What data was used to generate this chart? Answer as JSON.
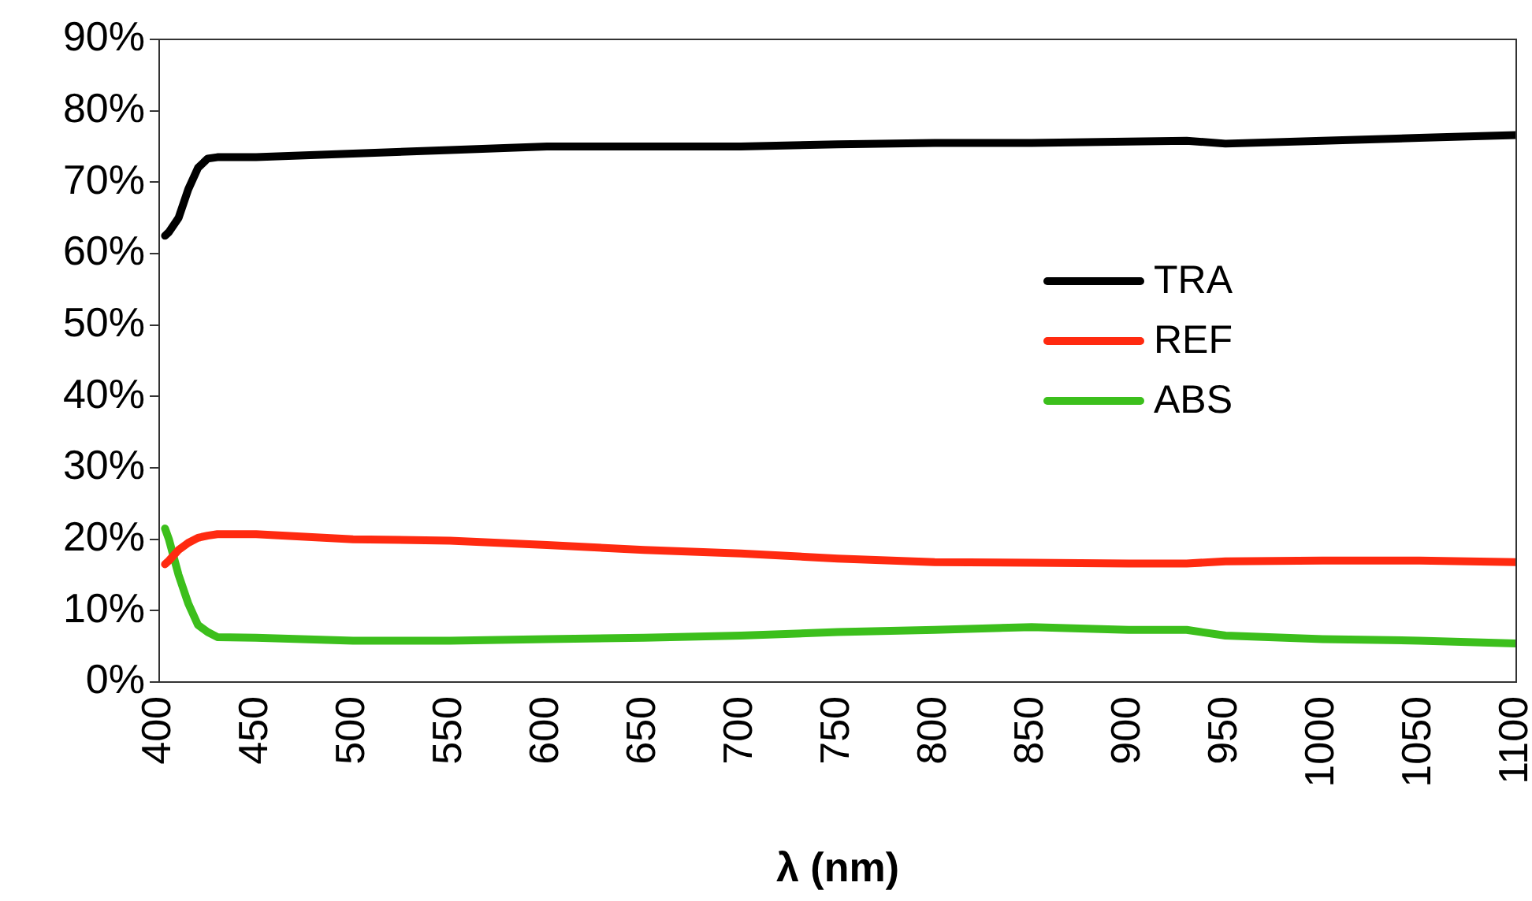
{
  "chart_data": {
    "type": "line",
    "xlabel": "λ (nm)",
    "xlim": [
      400,
      1100
    ],
    "xticks": [
      400,
      450,
      500,
      550,
      600,
      650,
      700,
      750,
      800,
      850,
      900,
      950,
      1000,
      1050,
      1100
    ],
    "ylim": [
      0,
      90
    ],
    "yticks": [
      {
        "value": 0,
        "label": "0%"
      },
      {
        "value": 10,
        "label": "10%"
      },
      {
        "value": 20,
        "label": "20%"
      },
      {
        "value": 30,
        "label": "30%"
      },
      {
        "value": 40,
        "label": "40%"
      },
      {
        "value": 50,
        "label": "50%"
      },
      {
        "value": 60,
        "label": "60%"
      },
      {
        "value": 70,
        "label": "70%"
      },
      {
        "value": 80,
        "label": "80%"
      },
      {
        "value": 90,
        "label": "90%"
      }
    ],
    "grid": false,
    "legend": "right",
    "marker": "none",
    "line_style": "solid",
    "x": [
      403,
      405,
      410,
      415,
      420,
      425,
      430,
      450,
      500,
      550,
      600,
      650,
      700,
      750,
      800,
      850,
      900,
      930,
      950,
      1000,
      1050,
      1100
    ],
    "series": [
      {
        "name": "TRA",
        "color": "#000000",
        "values": [
          62.5,
          63,
          65,
          69,
          72,
          73.3,
          73.5,
          73.5,
          74,
          74.5,
          75,
          75,
          75,
          75.3,
          75.5,
          75.5,
          75.7,
          75.8,
          75.4,
          75.8,
          76.2,
          76.6
        ]
      },
      {
        "name": "REF",
        "color": "#ff2a10",
        "values": [
          16.5,
          17,
          18.5,
          19.5,
          20.2,
          20.5,
          20.7,
          20.7,
          20,
          19.8,
          19.2,
          18.5,
          18,
          17.3,
          16.8,
          16.7,
          16.6,
          16.6,
          16.9,
          17,
          17,
          16.8
        ]
      },
      {
        "name": "ABS",
        "color": "#3cbf1c",
        "values": [
          21.5,
          20,
          15,
          11,
          8,
          7,
          6.3,
          6.2,
          5.8,
          5.8,
          6,
          6.2,
          6.5,
          7,
          7.3,
          7.7,
          7.3,
          7.3,
          6.5,
          6,
          5.8,
          5.4
        ]
      }
    ]
  }
}
